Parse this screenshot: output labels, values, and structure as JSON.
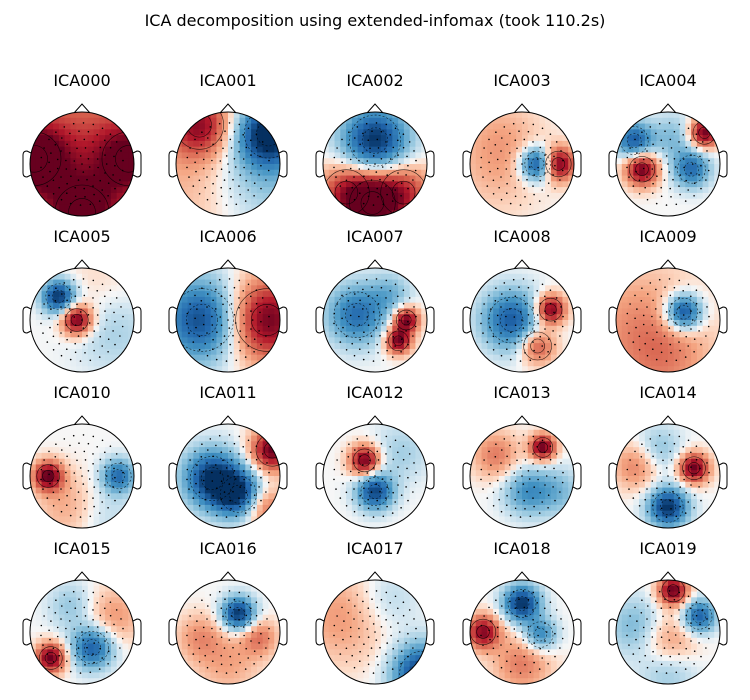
{
  "chart_data": {
    "type": "heatmap",
    "title": "ICA decomposition using extended-infomax (took 110.2s)",
    "grid": false,
    "colormap": "RdBu_r",
    "components": [
      {
        "name": "ICA000",
        "pattern": [
          {
            "x": 0,
            "y": 0,
            "v": 0.55,
            "s": 2.5
          },
          {
            "x": -0.92,
            "y": 0.1,
            "v": 0.9,
            "s": 0.22
          },
          {
            "x": 0.9,
            "y": 0.1,
            "v": 0.7,
            "s": 0.22
          },
          {
            "x": 0,
            "y": -0.92,
            "v": 0.75,
            "s": 0.22
          }
        ]
      },
      {
        "name": "ICA001",
        "pattern": [
          {
            "x": -0.55,
            "y": 0.75,
            "v": 0.8,
            "s": 0.18
          },
          {
            "x": 0.78,
            "y": 0.58,
            "v": -1.0,
            "s": 0.18
          },
          {
            "x": 0.6,
            "y": -0.1,
            "v": -0.35,
            "s": 0.6
          },
          {
            "x": -0.6,
            "y": -0.2,
            "v": 0.25,
            "s": 0.8
          }
        ]
      },
      {
        "name": "ICA002",
        "pattern": [
          {
            "x": 0,
            "y": 0.45,
            "v": -1.0,
            "s": 0.2
          },
          {
            "x": -0.05,
            "y": -0.75,
            "v": 1.0,
            "s": 0.16
          },
          {
            "x": 0.55,
            "y": -0.55,
            "v": 0.6,
            "s": 0.16
          },
          {
            "x": -0.55,
            "y": -0.55,
            "v": 0.6,
            "s": 0.16
          }
        ]
      },
      {
        "name": "ICA003",
        "pattern": [
          {
            "x": 0.3,
            "y": 0.0,
            "v": -1.0,
            "s": 0.05
          },
          {
            "x": 0.7,
            "y": 0.0,
            "v": 1.0,
            "s": 0.05
          },
          {
            "x": -0.4,
            "y": 0.5,
            "v": 0.2,
            "s": 0.3
          },
          {
            "x": -0.5,
            "y": -0.2,
            "v": 0.15,
            "s": 0.4
          }
        ]
      },
      {
        "name": "ICA004",
        "pattern": [
          {
            "x": -0.5,
            "y": -0.1,
            "v": 1.0,
            "s": 0.05
          },
          {
            "x": 0.7,
            "y": 0.6,
            "v": 1.0,
            "s": 0.04
          },
          {
            "x": -0.65,
            "y": 0.45,
            "v": -0.8,
            "s": 0.06
          },
          {
            "x": 0.45,
            "y": -0.1,
            "v": -0.7,
            "s": 0.06
          },
          {
            "x": 0.1,
            "y": 0.5,
            "v": -0.3,
            "s": 0.1
          }
        ]
      },
      {
        "name": "ICA005",
        "pattern": [
          {
            "x": -0.45,
            "y": 0.45,
            "v": -1.0,
            "s": 0.05
          },
          {
            "x": -0.1,
            "y": 0.0,
            "v": 1.0,
            "s": 0.04
          },
          {
            "x": 0.6,
            "y": -0.2,
            "v": -0.2,
            "s": 0.3
          },
          {
            "x": 0.3,
            "y": 0.6,
            "v": 0.1,
            "s": 0.3
          }
        ]
      },
      {
        "name": "ICA006",
        "pattern": [
          {
            "x": -0.5,
            "y": 0.0,
            "v": -0.9,
            "s": 0.3
          },
          {
            "x": 0.75,
            "y": 0.0,
            "v": 1.0,
            "s": 0.3
          }
        ]
      },
      {
        "name": "ICA007",
        "pattern": [
          {
            "x": -0.35,
            "y": 0.1,
            "v": -0.7,
            "s": 0.16
          },
          {
            "x": 0.6,
            "y": 0.0,
            "v": 1.0,
            "s": 0.03
          },
          {
            "x": 0.45,
            "y": -0.4,
            "v": 1.0,
            "s": 0.03
          },
          {
            "x": 0.3,
            "y": 0.5,
            "v": -0.3,
            "s": 0.08
          }
        ]
      },
      {
        "name": "ICA008",
        "pattern": [
          {
            "x": -0.2,
            "y": 0.0,
            "v": -0.8,
            "s": 0.16
          },
          {
            "x": 0.55,
            "y": 0.2,
            "v": 1.0,
            "s": 0.04
          },
          {
            "x": 0.3,
            "y": -0.5,
            "v": 0.6,
            "s": 0.06
          }
        ]
      },
      {
        "name": "ICA009",
        "pattern": [
          {
            "x": 0.3,
            "y": 0.15,
            "v": -1.0,
            "s": 0.06
          },
          {
            "x": -0.5,
            "y": -0.2,
            "v": 0.35,
            "s": 0.7
          },
          {
            "x": 0.0,
            "y": -0.8,
            "v": 0.2,
            "s": 0.3
          }
        ]
      },
      {
        "name": "ICA010",
        "pattern": [
          {
            "x": -0.65,
            "y": 0.0,
            "v": 1.0,
            "s": 0.04
          },
          {
            "x": 0.7,
            "y": 0.0,
            "v": -0.7,
            "s": 0.05
          },
          {
            "x": -0.2,
            "y": -0.6,
            "v": 0.3,
            "s": 0.2
          },
          {
            "x": 0.3,
            "y": -0.7,
            "v": -0.2,
            "s": 0.2
          }
        ]
      },
      {
        "name": "ICA011",
        "pattern": [
          {
            "x": -0.3,
            "y": -0.05,
            "v": -1.0,
            "s": 0.15
          },
          {
            "x": 0.2,
            "y": -0.35,
            "v": -0.9,
            "s": 0.1
          },
          {
            "x": 0.85,
            "y": 0.5,
            "v": 1.0,
            "s": 0.08
          },
          {
            "x": 0.7,
            "y": -0.6,
            "v": 0.5,
            "s": 0.08
          }
        ]
      },
      {
        "name": "ICA012",
        "pattern": [
          {
            "x": -0.2,
            "y": 0.3,
            "v": 1.0,
            "s": 0.04
          },
          {
            "x": 0.0,
            "y": -0.3,
            "v": -0.9,
            "s": 0.06
          },
          {
            "x": 0.5,
            "y": 0.45,
            "v": -0.2,
            "s": 0.15
          }
        ]
      },
      {
        "name": "ICA013",
        "pattern": [
          {
            "x": 0.4,
            "y": 0.55,
            "v": 1.0,
            "s": 0.03
          },
          {
            "x": 0.1,
            "y": -0.3,
            "v": -0.5,
            "s": 0.1
          },
          {
            "x": -0.5,
            "y": 0.4,
            "v": 0.4,
            "s": 0.1
          },
          {
            "x": 0.7,
            "y": -0.3,
            "v": -0.3,
            "s": 0.1
          }
        ]
      },
      {
        "name": "ICA014",
        "pattern": [
          {
            "x": 0.5,
            "y": 0.15,
            "v": 1.0,
            "s": 0.04
          },
          {
            "x": 0.0,
            "y": -0.6,
            "v": -1.0,
            "s": 0.07
          },
          {
            "x": -0.6,
            "y": 0.2,
            "v": 0.4,
            "s": 0.1
          },
          {
            "x": -0.2,
            "y": 0.5,
            "v": -0.3,
            "s": 0.1
          }
        ]
      },
      {
        "name": "ICA015",
        "pattern": [
          {
            "x": -0.6,
            "y": -0.5,
            "v": 1.0,
            "s": 0.04
          },
          {
            "x": 0.2,
            "y": -0.3,
            "v": -0.8,
            "s": 0.08
          },
          {
            "x": -0.2,
            "y": 0.5,
            "v": -0.25,
            "s": 0.1
          },
          {
            "x": 0.6,
            "y": 0.3,
            "v": 0.3,
            "s": 0.15
          }
        ]
      },
      {
        "name": "ICA016",
        "pattern": [
          {
            "x": 0.2,
            "y": 0.35,
            "v": -1.0,
            "s": 0.05
          },
          {
            "x": -0.55,
            "y": -0.1,
            "v": 0.3,
            "s": 0.1
          },
          {
            "x": 0.6,
            "y": -0.1,
            "v": 0.4,
            "s": 0.06
          },
          {
            "x": 0.0,
            "y": -0.6,
            "v": 0.25,
            "s": 0.2
          }
        ]
      },
      {
        "name": "ICA017",
        "pattern": [
          {
            "x": 0.9,
            "y": -0.8,
            "v": -1.0,
            "s": 0.15
          },
          {
            "x": -0.6,
            "y": 0.3,
            "v": 0.3,
            "s": 0.4
          },
          {
            "x": 0.2,
            "y": 0.6,
            "v": -0.2,
            "s": 0.2
          }
        ]
      },
      {
        "name": "ICA018",
        "pattern": [
          {
            "x": -0.75,
            "y": 0.0,
            "v": 0.9,
            "s": 0.05
          },
          {
            "x": 0.0,
            "y": 0.55,
            "v": -1.0,
            "s": 0.06
          },
          {
            "x": 0.35,
            "y": -0.05,
            "v": -0.6,
            "s": 0.05
          },
          {
            "x": 0.0,
            "y": -0.6,
            "v": 0.4,
            "s": 0.15
          }
        ]
      },
      {
        "name": "ICA019",
        "pattern": [
          {
            "x": 0.1,
            "y": 0.8,
            "v": 1.0,
            "s": 0.04
          },
          {
            "x": 0.6,
            "y": 0.3,
            "v": -0.8,
            "s": 0.05
          },
          {
            "x": -0.6,
            "y": 0.1,
            "v": -0.35,
            "s": 0.15
          },
          {
            "x": 0.0,
            "y": -0.2,
            "v": 0.4,
            "s": 0.15
          },
          {
            "x": 0.0,
            "y": -0.7,
            "v": -0.3,
            "s": 0.15
          }
        ]
      }
    ]
  }
}
